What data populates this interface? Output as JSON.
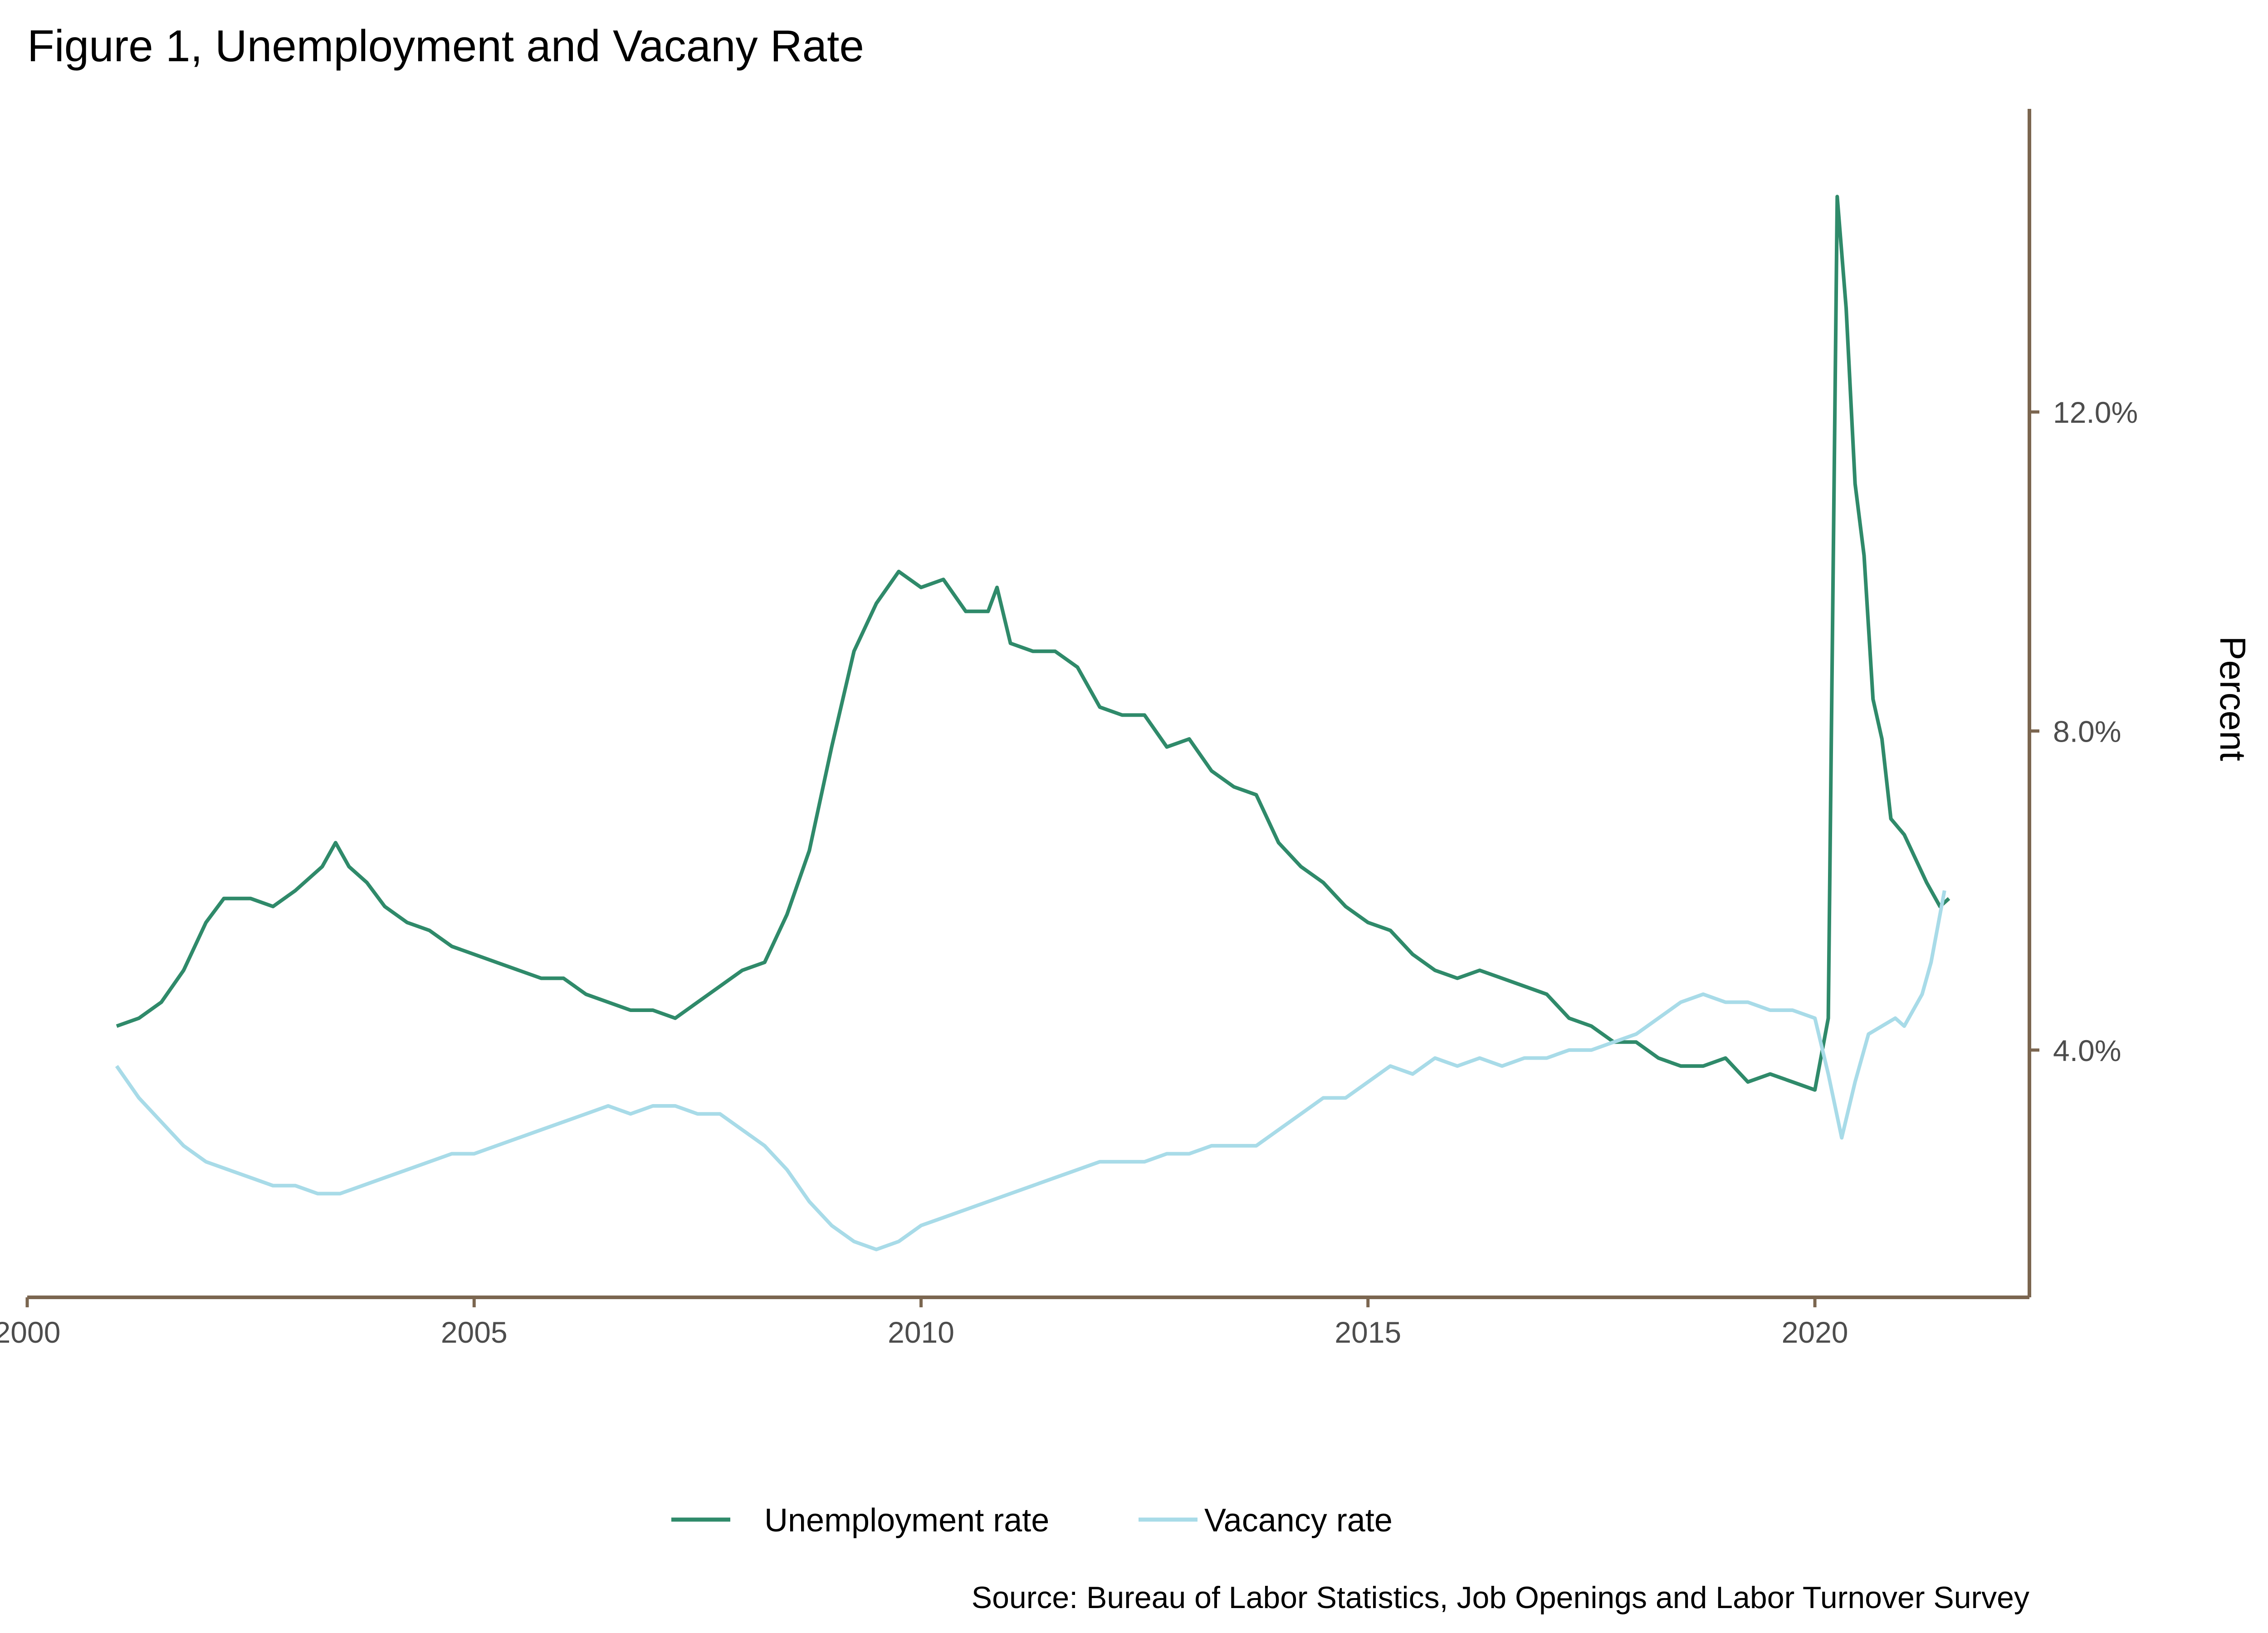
{
  "chart_data": {
    "type": "line",
    "title": "Figure 1, Unemployment and Vacany Rate",
    "ylabel": "Percent",
    "xlabel": "",
    "caption": "Source: Bureau of Labor Statistics, Job Openings and Labor Turnover Survey",
    "xlim": [
      2000,
      2022.4
    ],
    "ylim": [
      0.9,
      15.8
    ],
    "x_ticks": [
      2000,
      2005,
      2010,
      2015,
      2020
    ],
    "x_tick_labels": [
      "2000",
      "2005",
      "2010",
      "2015",
      "2020"
    ],
    "y_ticks": [
      4,
      8,
      12
    ],
    "y_tick_labels": [
      "4.0%",
      "8.0%",
      "12.0%"
    ],
    "y_axis_position": "right",
    "grid": false,
    "legend_position": "bottom",
    "axis_color": "#7b6650",
    "series": [
      {
        "name": "Unemployment rate",
        "color": "#2f8a6a",
        "points": [
          [
            2001.0,
            4.3
          ],
          [
            2001.25,
            4.4
          ],
          [
            2001.5,
            4.6
          ],
          [
            2001.75,
            5.0
          ],
          [
            2002.0,
            5.6
          ],
          [
            2002.2,
            5.9
          ],
          [
            2002.5,
            5.9
          ],
          [
            2002.75,
            5.8
          ],
          [
            2003.0,
            6.0
          ],
          [
            2003.3,
            6.3
          ],
          [
            2003.45,
            6.6
          ],
          [
            2003.6,
            6.3
          ],
          [
            2003.8,
            6.1
          ],
          [
            2004.0,
            5.8
          ],
          [
            2004.25,
            5.6
          ],
          [
            2004.5,
            5.5
          ],
          [
            2004.75,
            5.3
          ],
          [
            2005.0,
            5.2
          ],
          [
            2005.25,
            5.1
          ],
          [
            2005.5,
            5.0
          ],
          [
            2005.75,
            4.9
          ],
          [
            2006.0,
            4.9
          ],
          [
            2006.25,
            4.7
          ],
          [
            2006.5,
            4.6
          ],
          [
            2006.75,
            4.5
          ],
          [
            2007.0,
            4.5
          ],
          [
            2007.25,
            4.4
          ],
          [
            2007.5,
            4.6
          ],
          [
            2007.75,
            4.8
          ],
          [
            2008.0,
            5.0
          ],
          [
            2008.25,
            5.1
          ],
          [
            2008.5,
            5.7
          ],
          [
            2008.75,
            6.5
          ],
          [
            2009.0,
            7.8
          ],
          [
            2009.25,
            9.0
          ],
          [
            2009.5,
            9.6
          ],
          [
            2009.75,
            10.0
          ],
          [
            2010.0,
            9.8
          ],
          [
            2010.25,
            9.9
          ],
          [
            2010.5,
            9.5
          ],
          [
            2010.75,
            9.5
          ],
          [
            2010.85,
            9.8
          ],
          [
            2011.0,
            9.1
          ],
          [
            2011.25,
            9.0
          ],
          [
            2011.5,
            9.0
          ],
          [
            2011.75,
            8.8
          ],
          [
            2012.0,
            8.3
          ],
          [
            2012.25,
            8.2
          ],
          [
            2012.5,
            8.2
          ],
          [
            2012.75,
            7.8
          ],
          [
            2013.0,
            7.9
          ],
          [
            2013.25,
            7.5
          ],
          [
            2013.5,
            7.3
          ],
          [
            2013.75,
            7.2
          ],
          [
            2014.0,
            6.6
          ],
          [
            2014.25,
            6.3
          ],
          [
            2014.5,
            6.1
          ],
          [
            2014.75,
            5.8
          ],
          [
            2015.0,
            5.6
          ],
          [
            2015.25,
            5.5
          ],
          [
            2015.5,
            5.2
          ],
          [
            2015.75,
            5.0
          ],
          [
            2016.0,
            4.9
          ],
          [
            2016.25,
            5.0
          ],
          [
            2016.5,
            4.9
          ],
          [
            2016.75,
            4.8
          ],
          [
            2017.0,
            4.7
          ],
          [
            2017.25,
            4.4
          ],
          [
            2017.5,
            4.3
          ],
          [
            2017.75,
            4.1
          ],
          [
            2018.0,
            4.1
          ],
          [
            2018.25,
            3.9
          ],
          [
            2018.5,
            3.8
          ],
          [
            2018.75,
            3.8
          ],
          [
            2019.0,
            3.9
          ],
          [
            2019.25,
            3.6
          ],
          [
            2019.5,
            3.7
          ],
          [
            2019.75,
            3.6
          ],
          [
            2020.0,
            3.5
          ],
          [
            2020.15,
            4.4
          ],
          [
            2020.25,
            14.7
          ],
          [
            2020.35,
            13.3
          ],
          [
            2020.45,
            11.1
          ],
          [
            2020.55,
            10.2
          ],
          [
            2020.65,
            8.4
          ],
          [
            2020.75,
            7.9
          ],
          [
            2020.85,
            6.9
          ],
          [
            2021.0,
            6.7
          ],
          [
            2021.25,
            6.1
          ],
          [
            2021.4,
            5.8
          ],
          [
            2021.5,
            5.9
          ]
        ]
      },
      {
        "name": "Vacancy rate",
        "color": "#a8dbe8",
        "points": [
          [
            2001.0,
            3.8
          ],
          [
            2001.25,
            3.4
          ],
          [
            2001.5,
            3.1
          ],
          [
            2001.75,
            2.8
          ],
          [
            2002.0,
            2.6
          ],
          [
            2002.25,
            2.5
          ],
          [
            2002.5,
            2.4
          ],
          [
            2002.75,
            2.3
          ],
          [
            2003.0,
            2.3
          ],
          [
            2003.25,
            2.2
          ],
          [
            2003.5,
            2.2
          ],
          [
            2003.75,
            2.3
          ],
          [
            2004.0,
            2.4
          ],
          [
            2004.25,
            2.5
          ],
          [
            2004.5,
            2.6
          ],
          [
            2004.75,
            2.7
          ],
          [
            2005.0,
            2.7
          ],
          [
            2005.25,
            2.8
          ],
          [
            2005.5,
            2.9
          ],
          [
            2005.75,
            3.0
          ],
          [
            2006.0,
            3.1
          ],
          [
            2006.25,
            3.2
          ],
          [
            2006.5,
            3.3
          ],
          [
            2006.75,
            3.2
          ],
          [
            2007.0,
            3.3
          ],
          [
            2007.25,
            3.3
          ],
          [
            2007.5,
            3.2
          ],
          [
            2007.75,
            3.2
          ],
          [
            2008.0,
            3.0
          ],
          [
            2008.25,
            2.8
          ],
          [
            2008.5,
            2.5
          ],
          [
            2008.75,
            2.1
          ],
          [
            2009.0,
            1.8
          ],
          [
            2009.25,
            1.6
          ],
          [
            2009.5,
            1.5
          ],
          [
            2009.75,
            1.6
          ],
          [
            2010.0,
            1.8
          ],
          [
            2010.25,
            1.9
          ],
          [
            2010.5,
            2.0
          ],
          [
            2010.75,
            2.1
          ],
          [
            2011.0,
            2.2
          ],
          [
            2011.25,
            2.3
          ],
          [
            2011.5,
            2.4
          ],
          [
            2011.75,
            2.5
          ],
          [
            2012.0,
            2.6
          ],
          [
            2012.25,
            2.6
          ],
          [
            2012.5,
            2.6
          ],
          [
            2012.75,
            2.7
          ],
          [
            2013.0,
            2.7
          ],
          [
            2013.25,
            2.8
          ],
          [
            2013.5,
            2.8
          ],
          [
            2013.75,
            2.8
          ],
          [
            2014.0,
            3.0
          ],
          [
            2014.25,
            3.2
          ],
          [
            2014.5,
            3.4
          ],
          [
            2014.75,
            3.4
          ],
          [
            2015.0,
            3.6
          ],
          [
            2015.25,
            3.8
          ],
          [
            2015.5,
            3.7
          ],
          [
            2015.75,
            3.9
          ],
          [
            2016.0,
            3.8
          ],
          [
            2016.25,
            3.9
          ],
          [
            2016.5,
            3.8
          ],
          [
            2016.75,
            3.9
          ],
          [
            2017.0,
            3.9
          ],
          [
            2017.25,
            4.0
          ],
          [
            2017.5,
            4.0
          ],
          [
            2017.75,
            4.1
          ],
          [
            2018.0,
            4.2
          ],
          [
            2018.25,
            4.4
          ],
          [
            2018.5,
            4.6
          ],
          [
            2018.75,
            4.7
          ],
          [
            2019.0,
            4.6
          ],
          [
            2019.25,
            4.6
          ],
          [
            2019.5,
            4.5
          ],
          [
            2019.75,
            4.5
          ],
          [
            2020.0,
            4.4
          ],
          [
            2020.15,
            3.7
          ],
          [
            2020.3,
            2.9
          ],
          [
            2020.45,
            3.6
          ],
          [
            2020.6,
            4.2
          ],
          [
            2020.75,
            4.3
          ],
          [
            2020.9,
            4.4
          ],
          [
            2021.0,
            4.3
          ],
          [
            2021.2,
            4.7
          ],
          [
            2021.3,
            5.1
          ],
          [
            2021.45,
            6.0
          ]
        ]
      }
    ]
  }
}
